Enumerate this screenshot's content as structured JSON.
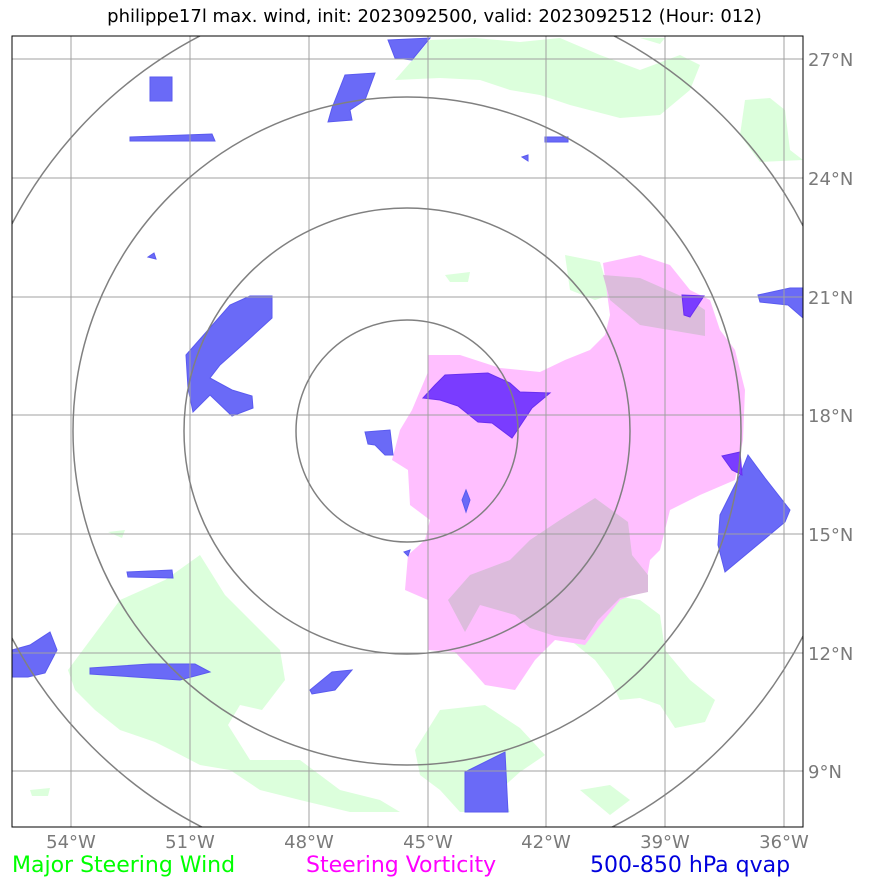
{
  "title": "philippe17l max. wind, init: 2023092500, valid: 2023092512 (Hour: 012)",
  "axes": {
    "lon_labels": [
      "54°W",
      "51°W",
      "48°W",
      "45°W",
      "42°W",
      "39°W",
      "36°W"
    ],
    "lat_labels": [
      "27°N",
      "24°N",
      "21°N",
      "18°N",
      "15°N",
      "12°N",
      "9°N"
    ],
    "lon_range": [
      -55.5,
      -35.5
    ],
    "lat_range": [
      7.6,
      27.6
    ]
  },
  "legend": {
    "wind": {
      "label": "Major Steering Wind",
      "color": "#00ff00"
    },
    "vorticity": {
      "label": "Steering Vorticity",
      "color": "#ff00ff"
    },
    "qvap": {
      "label": "500-850 hPa qvap",
      "color": "#0000dd"
    }
  },
  "colors": {
    "wind_fill": "#dcffdc",
    "vort_fill": "#ffbfff",
    "overlap_fill": "#dcbcdc",
    "qvap_fill": "#6a6af7",
    "qvap_dark": "#7a3cff",
    "grid": "#a0a0a0",
    "ring": "#808080"
  },
  "storm_center": {
    "lon": -45.5,
    "lat": 17.6
  }
}
